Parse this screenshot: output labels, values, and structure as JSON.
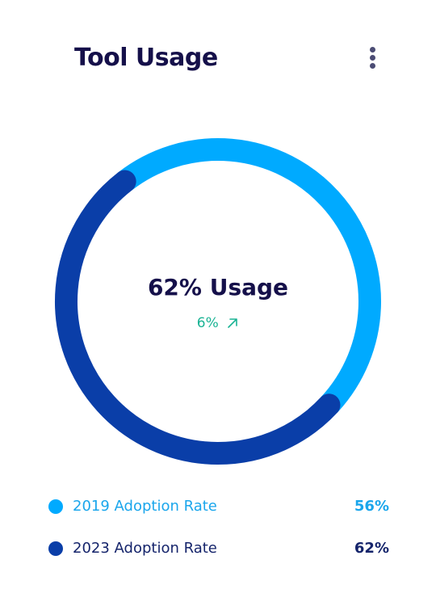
{
  "card": {
    "title": "Tool Usage",
    "menu_icon": "more-vertical-icon"
  },
  "center": {
    "label": "62% Usage",
    "trend_value": "6%",
    "trend_icon": "arrow-up-right-icon",
    "trend_color": "#1ab394"
  },
  "legend": [
    {
      "label": "2019 Adoption Rate",
      "value": "56%",
      "color": "#00aaff",
      "label_color": "#1aa6ec",
      "value_color": "#1aa6ec"
    },
    {
      "label": "2023 Adoption Rate",
      "value": "62%",
      "color": "#0a3ea8",
      "label_color": "#15246b",
      "value_color": "#15246b"
    }
  ],
  "chart_data": {
    "type": "pie",
    "variant": "donut",
    "center_text": "62% Usage",
    "series": [
      {
        "name": "2019 Adoption Rate",
        "value": 56,
        "color": "#00aaff"
      },
      {
        "name": "2023 Adoption Rate",
        "value": 62,
        "color": "#0a3ea8"
      }
    ],
    "legend_position": "bottom"
  }
}
